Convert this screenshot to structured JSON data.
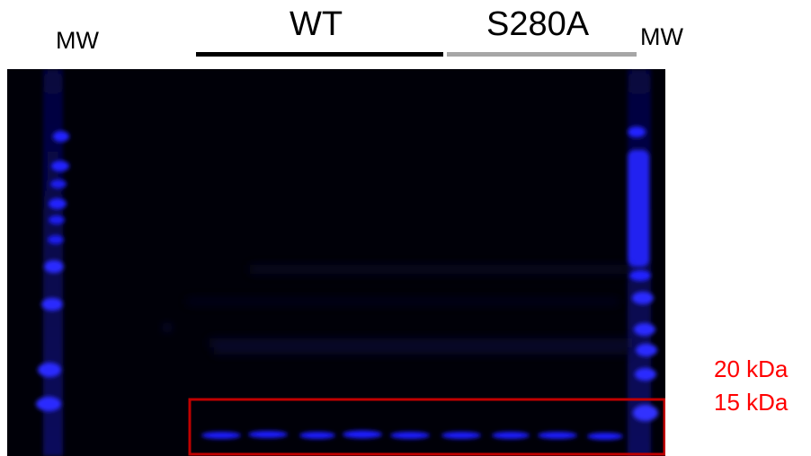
{
  "labels": {
    "mw_left": "MW",
    "mw_right": "MW",
    "group_wt": "WT",
    "group_s280a": "S280A"
  },
  "markers": {
    "kda_20": "20 kDa",
    "kda_15": "15 kDa"
  },
  "colors": {
    "blot_background": "#000008",
    "band_color": "#1a1aff",
    "wt_bar": "#000000",
    "s280a_bar": "#a6a6a6",
    "highlight_box": "#c00000",
    "marker_text": "#ff0000"
  }
}
